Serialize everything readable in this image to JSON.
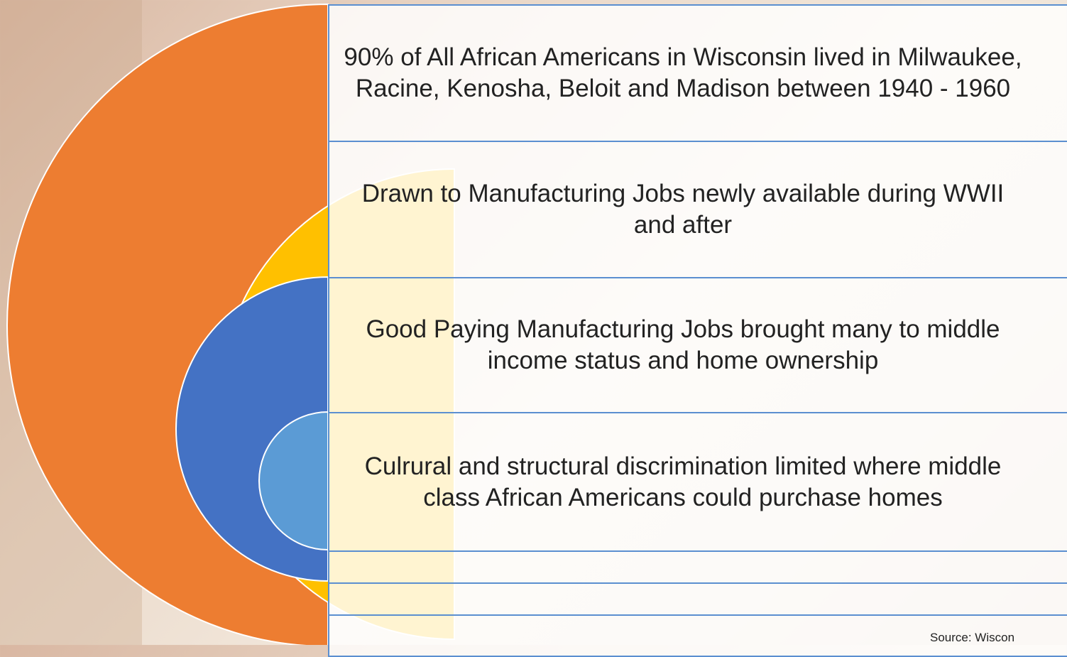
{
  "items": [
    "90% of All African Americans in Wisconsin lived in Milwaukee, Racine, Kenosha, Beloit and Madison between 1940 - 1960",
    "Drawn to Manufacturing Jobs newly available during WWII and after",
    "Good Paying Manufacturing Jobs brought many to middle income status and home ownership",
    "Culrural and structural discrimination limited where middle class African Americans could purchase homes"
  ],
  "source": "Source: Wiscon"
}
